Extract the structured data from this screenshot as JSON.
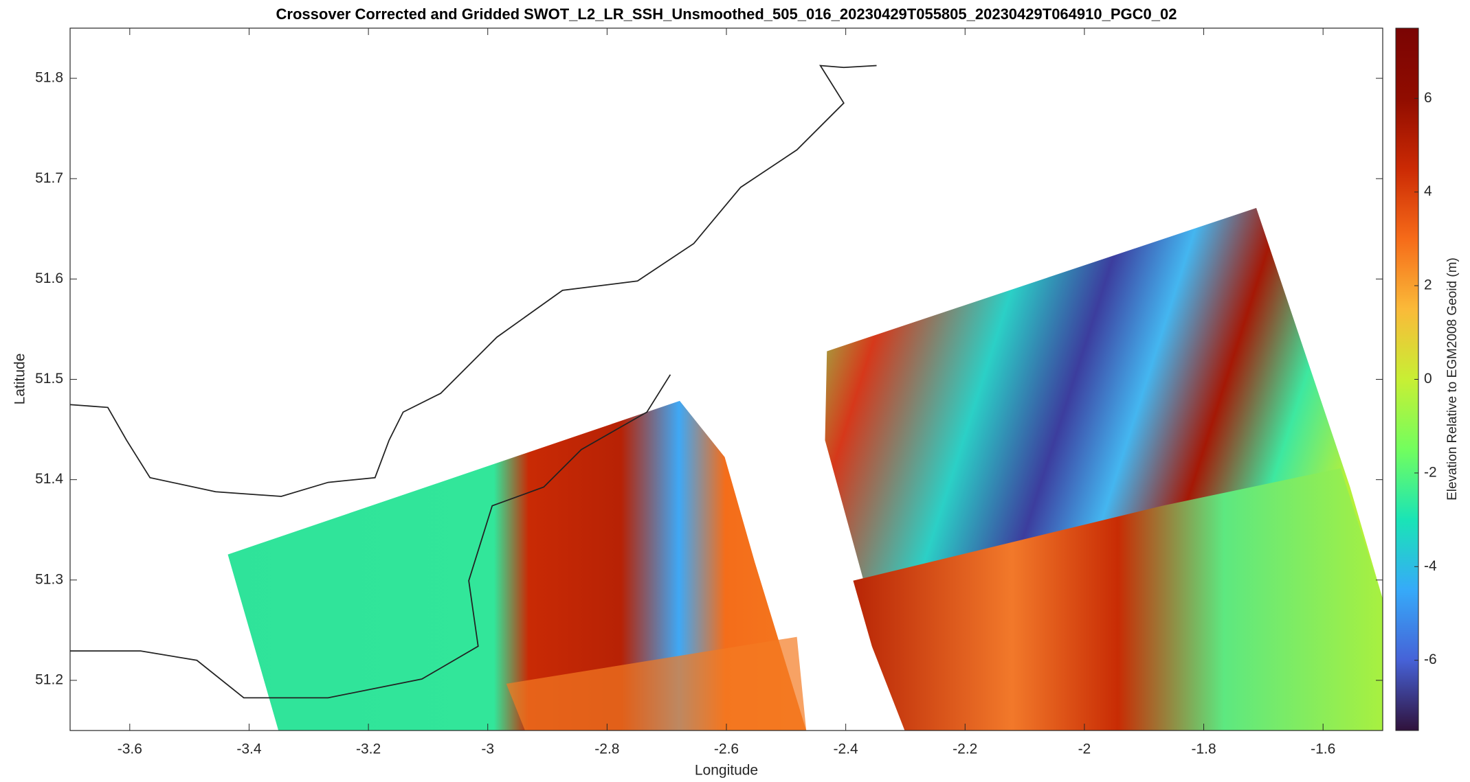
{
  "chart_data": {
    "type": "map",
    "title": "Crossover Corrected and Gridded SWOT_L2_LR_SSH_Unsmoothed_505_016_20230429T055805_20230429T064910_PGC0_02",
    "x_label": "Longitude",
    "y_label": "Latitude",
    "xlim": [
      -3.7,
      -1.5
    ],
    "xticks": [
      -3.6,
      -3.4,
      -3.2,
      -3,
      -2.8,
      -2.6,
      -2.4,
      -2.2,
      -2,
      -1.8,
      -1.6
    ],
    "ylim": [
      51.15,
      51.85
    ],
    "yticks": [
      51.2,
      51.3,
      51.4,
      51.5,
      51.6,
      51.7,
      51.8
    ],
    "colorbar": {
      "label": "Elevation Relative to EGM2008 Geoid (m)",
      "clim": [
        -7.5,
        7.5
      ],
      "ticks": [
        -6,
        -4,
        -2,
        0,
        2,
        4,
        6
      ],
      "colormap": "turbo"
    }
  }
}
